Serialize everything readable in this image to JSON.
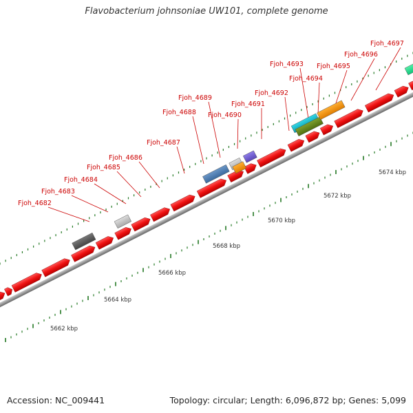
{
  "title": "Flavobacterium johnsoniae UW101, complete genome",
  "footer": {
    "accession": "Accession: NC_009441",
    "topology": "Topology: circular; Length: 6,096,872 bp; Genes: 5,099"
  },
  "colors": {
    "gene_forward": "#ee1111",
    "backbone": "#999999",
    "label": "#cc0000",
    "tick": "#227722"
  },
  "scale_labels": [
    "5662 kbp",
    "5664 kbp",
    "5666 kbp",
    "5668 kbp",
    "5670 kbp",
    "5672 kbp",
    "5674 kbp"
  ],
  "gene_labels": [
    "Fjoh_4682",
    "Fjoh_4683",
    "Fjoh_4684",
    "Fjoh_4685",
    "Fjoh_4686",
    "Fjoh_4687",
    "Fjoh_4688",
    "Fjoh_4689",
    "Fjoh_4690",
    "Fjoh_4691",
    "Fjoh_4692",
    "Fjoh_4693",
    "Fjoh_4694",
    "Fjoh_4695",
    "Fjoh_4696",
    "Fjoh_4697"
  ]
}
